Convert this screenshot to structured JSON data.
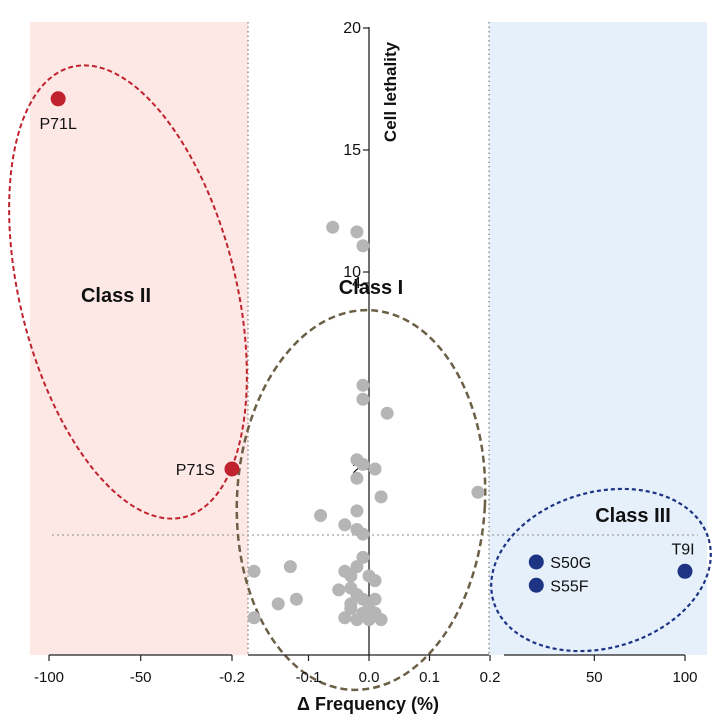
{
  "chart_data": {
    "type": "scatter",
    "xlabel": "Δ Frequency (%)",
    "ylabel": "Cell lethality",
    "x_left_ticks": [
      "-100",
      "-50",
      "-0.2"
    ],
    "x_mid_ticks": [
      "-0.2",
      "-0.1",
      "0.0",
      "0.1",
      "0.2"
    ],
    "x_right_ticks": [
      "0.2",
      "50",
      "100"
    ],
    "y_upper_ticks": [
      "10",
      "15",
      "20"
    ],
    "y_lower_ticks": [
      "2",
      "4"
    ],
    "regions": [
      {
        "name": "left",
        "color": "#fde8e6"
      },
      {
        "name": "right",
        "color": "#e5f0fb"
      }
    ],
    "class_labels": [
      "Class I",
      "Class II",
      "Class III"
    ],
    "ellipse_colors": {
      "class1": "#6b5f45",
      "class2": "#c0222e",
      "class3": "#1d3384"
    },
    "threshold_line": {
      "style": "dotted",
      "color": "#b0b0b0"
    },
    "series": [
      {
        "color": "#c0222e",
        "points": [
          {
            "label": "P71L",
            "x": -95,
            "y": 17.1
          },
          {
            "label": "P71S",
            "x": -0.23,
            "y": 2.0
          }
        ]
      },
      {
        "color": "#1d3384",
        "points": [
          {
            "label": "T9I",
            "x": 100,
            "y": 0.9
          },
          {
            "label": "S50G",
            "x": 18,
            "y": 1.0
          },
          {
            "label": "S55F",
            "x": 18,
            "y": 0.75
          }
        ]
      },
      {
        "color": "#b5b5b5",
        "points": [
          {
            "x": -0.06,
            "y": 4.6
          },
          {
            "x": -0.02,
            "y": 4.55
          },
          {
            "x": -0.01,
            "y": 4.4
          },
          {
            "x": -0.01,
            "y": 2.9
          },
          {
            "x": -0.01,
            "y": 2.75
          },
          {
            "x": 0.03,
            "y": 2.6
          },
          {
            "x": -0.02,
            "y": 2.1
          },
          {
            "x": -0.01,
            "y": 2.05
          },
          {
            "x": 0.01,
            "y": 2.0
          },
          {
            "x": -0.02,
            "y": 1.9
          },
          {
            "x": 0.02,
            "y": 1.7
          },
          {
            "x": 0.18,
            "y": 1.75
          },
          {
            "x": -0.02,
            "y": 1.55
          },
          {
            "x": -0.08,
            "y": 1.5
          },
          {
            "x": -0.04,
            "y": 1.4
          },
          {
            "x": -0.02,
            "y": 1.35
          },
          {
            "x": -0.01,
            "y": 1.3
          },
          {
            "x": -0.13,
            "y": 0.95
          },
          {
            "x": -0.19,
            "y": 0.9
          },
          {
            "x": -0.01,
            "y": 1.05
          },
          {
            "x": -0.02,
            "y": 0.95
          },
          {
            "x": -0.04,
            "y": 0.9
          },
          {
            "x": -0.03,
            "y": 0.85
          },
          {
            "x": 0.0,
            "y": 0.85
          },
          {
            "x": 0.01,
            "y": 0.8
          },
          {
            "x": -0.05,
            "y": 0.7
          },
          {
            "x": -0.03,
            "y": 0.72
          },
          {
            "x": -0.02,
            "y": 0.65
          },
          {
            "x": -0.01,
            "y": 0.6
          },
          {
            "x": 0.01,
            "y": 0.6
          },
          {
            "x": -0.12,
            "y": 0.6
          },
          {
            "x": -0.15,
            "y": 0.55
          },
          {
            "x": -0.03,
            "y": 0.5
          },
          {
            "x": -0.01,
            "y": 0.45
          },
          {
            "x": 0.0,
            "y": 0.42
          },
          {
            "x": 0.01,
            "y": 0.45
          },
          {
            "x": -0.19,
            "y": 0.4
          },
          {
            "x": -0.04,
            "y": 0.4
          },
          {
            "x": -0.02,
            "y": 0.38
          },
          {
            "x": 0.0,
            "y": 0.38
          },
          {
            "x": 0.02,
            "y": 0.38
          },
          {
            "x": -0.03,
            "y": 0.55
          },
          {
            "x": 0.0,
            "y": 0.55
          }
        ]
      }
    ]
  }
}
